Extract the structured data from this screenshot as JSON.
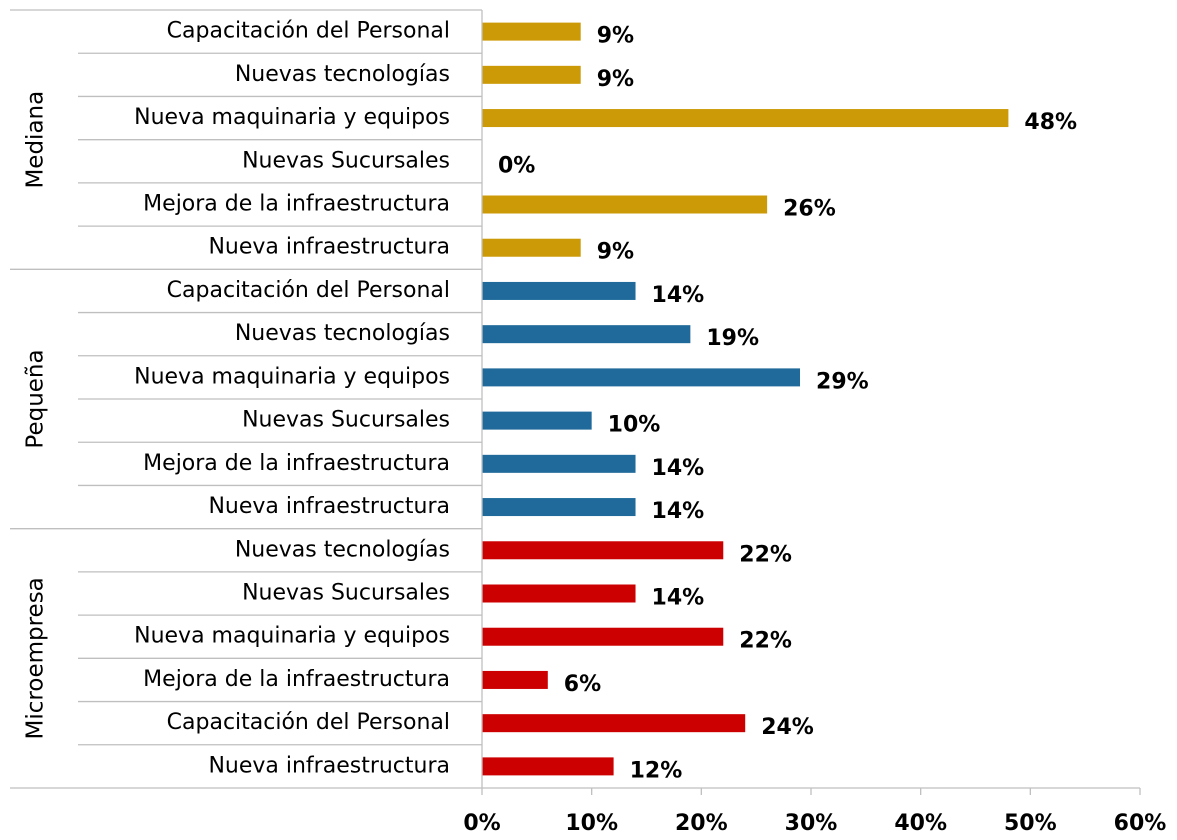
{
  "chart_data": {
    "type": "bar",
    "groups": [
      {
        "name": "Mediana",
        "color": "#cc9a06",
        "categories": [
          "Capacitación del Personal",
          "Nuevas tecnologías",
          "Nueva maquinaria y equipos",
          "Nuevas Sucursales",
          "Mejora de la infraestructura",
          "Nueva infraestructura"
        ],
        "values": [
          9,
          9,
          48,
          0,
          26,
          9
        ],
        "value_labels": [
          "9%",
          "9%",
          "48%",
          "0%",
          "26%",
          "9%"
        ]
      },
      {
        "name": "Pequeña",
        "color": "#1f6a9a",
        "categories": [
          "Capacitación del Personal",
          "Nuevas tecnologías",
          "Nueva maquinaria y equipos",
          "Nuevas Sucursales",
          "Mejora de la infraestructura",
          "Nueva infraestructura"
        ],
        "values": [
          14,
          19,
          29,
          10,
          14,
          14
        ],
        "value_labels": [
          "14%",
          "19%",
          "29%",
          "10%",
          "14%",
          "14%"
        ]
      },
      {
        "name": "Microempresa",
        "color": "#cc0000",
        "categories": [
          "Nuevas tecnologías",
          "Nuevas Sucursales",
          "Nueva maquinaria y equipos",
          "Mejora de la infraestructura",
          "Capacitación del Personal",
          "Nueva infraestructura"
        ],
        "values": [
          22,
          14,
          22,
          6,
          24,
          12
        ],
        "value_labels": [
          "22%",
          "14%",
          "22%",
          "6%",
          "24%",
          "12%"
        ]
      }
    ],
    "xlim": [
      0,
      60
    ],
    "xticks": [
      {
        "value": 0,
        "label": "0%"
      },
      {
        "value": 10,
        "label": "10%"
      },
      {
        "value": 20,
        "label": "20%"
      },
      {
        "value": 30,
        "label": "30%"
      },
      {
        "value": 40,
        "label": "40%"
      },
      {
        "value": 50,
        "label": "50%"
      },
      {
        "value": 60,
        "label": "60%"
      }
    ]
  }
}
